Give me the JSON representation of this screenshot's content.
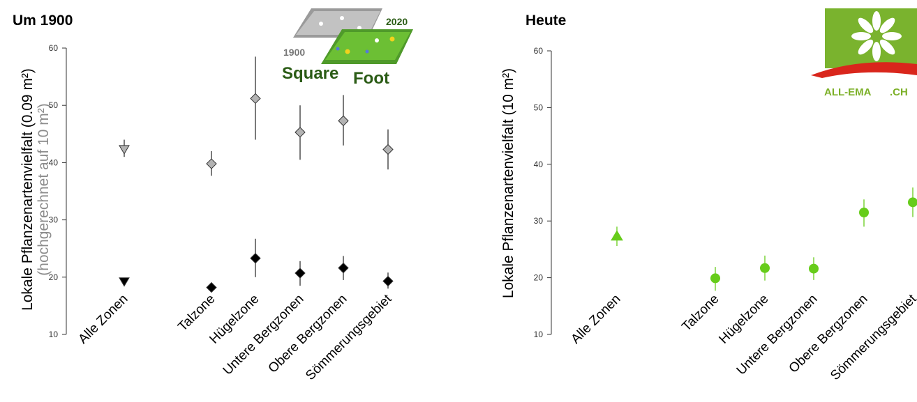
{
  "chart_data": [
    {
      "type": "scatter",
      "title": "Um 1900",
      "ylabel": "Lokale Pflanzenartenvielfalt (0.09 m²)",
      "ylabel2": "(hochgerechnet auf 10 m²)",
      "ylim": [
        10,
        60
      ],
      "yticks": [
        "10",
        "20",
        "30",
        "40",
        "50",
        "60"
      ],
      "categories": [
        "Alle Zonen",
        "Talzone",
        "Hügelzone",
        "Untere Bergzonen",
        "Obere Bergzonen",
        "Sömmerungsgebiet"
      ],
      "series": [
        {
          "marker_color": "#b3b3b3",
          "points": [
            {
              "category": "Alle Zonen",
              "y": 42.3,
              "low": 41.0,
              "high": 44.0,
              "marker": "triangle-down"
            },
            {
              "category": "Talzone",
              "y": 39.8,
              "low": 37.7,
              "high": 42.0,
              "marker": "diamond"
            },
            {
              "category": "Hügelzone",
              "y": 51.2,
              "low": 44.0,
              "high": 58.5,
              "marker": "diamond"
            },
            {
              "category": "Untere Bergzonen",
              "y": 45.3,
              "low": 40.5,
              "high": 50.0,
              "marker": "diamond"
            },
            {
              "category": "Obere Bergzonen",
              "y": 47.3,
              "low": 43.0,
              "high": 51.8,
              "marker": "diamond"
            },
            {
              "category": "Sömmerungsgebiet",
              "y": 42.3,
              "low": 38.8,
              "high": 45.8,
              "marker": "diamond"
            }
          ]
        },
        {
          "marker_color": "#000000",
          "points": [
            {
              "category": "Alle Zonen",
              "y": 19.2,
              "low": 19.2,
              "high": 19.2,
              "marker": "triangle-down"
            },
            {
              "category": "Talzone",
              "y": 18.2,
              "low": 18.2,
              "high": 18.2,
              "marker": "diamond"
            },
            {
              "category": "Hügelzone",
              "y": 23.3,
              "low": 20.0,
              "high": 26.7,
              "marker": "diamond"
            },
            {
              "category": "Untere Bergzonen",
              "y": 20.7,
              "low": 18.5,
              "high": 22.8,
              "marker": "diamond"
            },
            {
              "category": "Obere Bergzonen",
              "y": 21.6,
              "low": 19.5,
              "high": 23.7,
              "marker": "diamond"
            },
            {
              "category": "Sömmerungsgebiet",
              "y": 19.3,
              "low": 18.0,
              "high": 20.8,
              "marker": "diamond"
            }
          ]
        }
      ]
    },
    {
      "type": "scatter",
      "title": "Heute",
      "ylabel": "Lokale Pflanzenartenvielfalt (10 m²)",
      "ylim": [
        10,
        60
      ],
      "yticks": [
        "10",
        "20",
        "30",
        "40",
        "50",
        "60"
      ],
      "categories": [
        "Alle Zonen",
        "Talzone",
        "Hügelzone",
        "Untere Bergzonen",
        "Obere Bergzonen",
        "Sömmerungsgebiet"
      ],
      "series": [
        {
          "marker_color": "#66cc1a",
          "points": [
            {
              "category": "Alle Zonen",
              "y": 27.3,
              "low": 25.6,
              "high": 29.0,
              "marker": "triangle-up"
            },
            {
              "category": "Talzone",
              "y": 19.9,
              "low": 17.7,
              "high": 21.9,
              "marker": "circle"
            },
            {
              "category": "Hügelzone",
              "y": 21.7,
              "low": 19.5,
              "high": 23.9,
              "marker": "circle"
            },
            {
              "category": "Untere Bergzonen",
              "y": 21.6,
              "low": 19.6,
              "high": 23.6,
              "marker": "circle"
            },
            {
              "category": "Obere Bergzonen",
              "y": 31.5,
              "low": 29.0,
              "high": 33.8,
              "marker": "circle"
            },
            {
              "category": "Sömmerungsgebiet",
              "y": 33.3,
              "low": 30.7,
              "high": 35.9,
              "marker": "circle"
            }
          ]
        }
      ]
    }
  ],
  "logos": {
    "squarefoot": {
      "year_left": "1900",
      "year_right": "2020",
      "word_1": "Square",
      "word_2": "Foot"
    },
    "allema": {
      "text": "ALL-EMA",
      "suffix": ".CH"
    }
  }
}
